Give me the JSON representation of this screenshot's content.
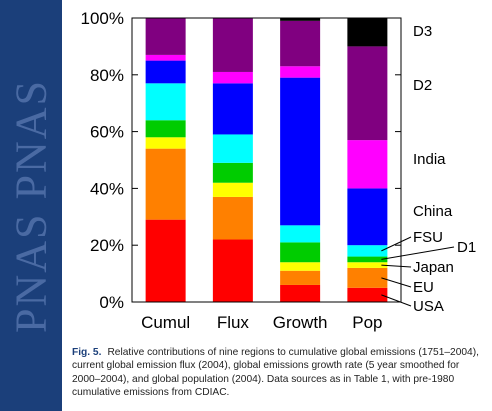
{
  "brand": {
    "side_text": "PNAS PNAS"
  },
  "chart_data": {
    "type": "bar",
    "stacked": true,
    "categories": [
      "Cumul",
      "Flux",
      "Growth",
      "Pop"
    ],
    "ylim": [
      0,
      100
    ],
    "yticks": [
      "0%",
      "20%",
      "40%",
      "60%",
      "80%",
      "100%"
    ],
    "ytick_values": [
      0,
      20,
      40,
      60,
      80,
      100
    ],
    "series": [
      {
        "name": "USA",
        "color": "#ff0000",
        "values": [
          29,
          22,
          6,
          5
        ]
      },
      {
        "name": "EU",
        "color": "#ff8000",
        "values": [
          25,
          15,
          5,
          7
        ]
      },
      {
        "name": "Japan",
        "color": "#ffff00",
        "values": [
          4,
          5,
          3,
          2
        ]
      },
      {
        "name": "D1",
        "color": "#00cc00",
        "values": [
          6,
          7,
          7,
          2
        ]
      },
      {
        "name": "FSU",
        "color": "#00ffff",
        "values": [
          13,
          10,
          6,
          4
        ]
      },
      {
        "name": "China",
        "color": "#0000ff",
        "values": [
          8,
          18,
          52,
          20
        ]
      },
      {
        "name": "India",
        "color": "#ff00ff",
        "values": [
          2,
          4,
          4,
          17
        ]
      },
      {
        "name": "D2",
        "color": "#800080",
        "values": [
          13,
          19,
          16,
          33
        ]
      },
      {
        "name": "D3",
        "color": "#000000",
        "values": [
          0,
          0,
          1,
          10
        ]
      }
    ],
    "legend_labels": [
      "D3",
      "D2",
      "India",
      "China",
      "FSU",
      "D1",
      "Japan",
      "EU",
      "USA"
    ]
  },
  "caption": {
    "label": "Fig. 5.",
    "text": "Relative contributions of nine regions to cumulative global emissions (1751–2004), current global emission flux (2004), global emissions growth rate (5 year smoothed for 2000–2004), and global population (2004). Data sources as in Table 1, with pre-1980 cumulative emissions from CDIAC."
  }
}
